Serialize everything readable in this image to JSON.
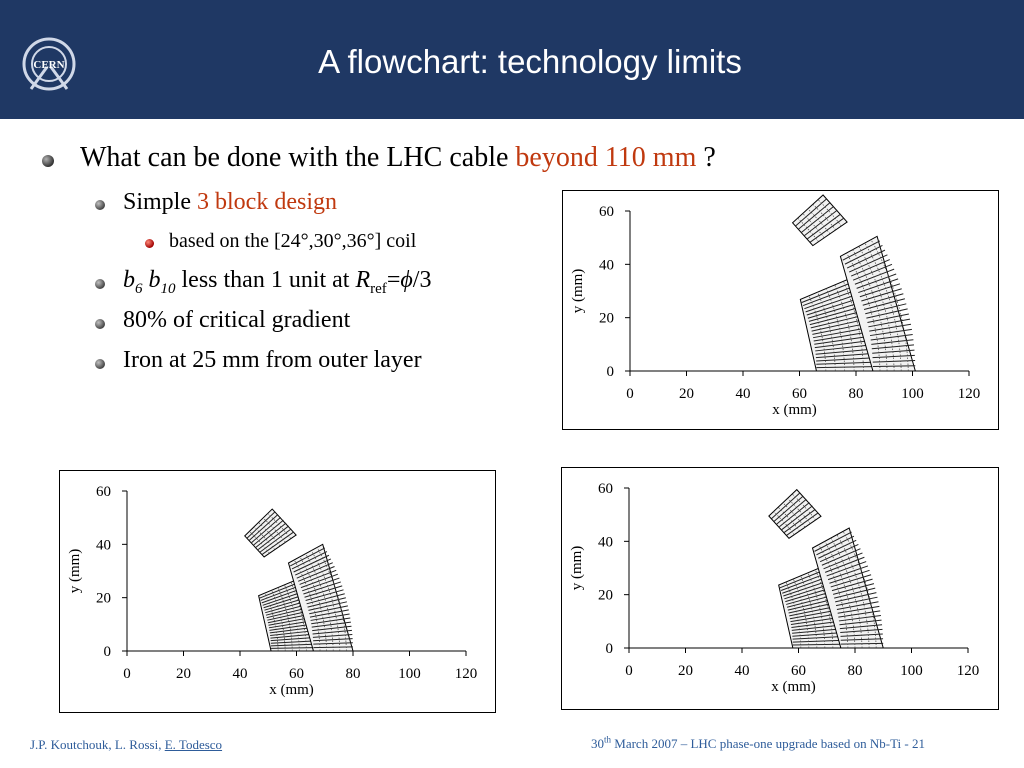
{
  "header": {
    "title": "A flowchart: technology limits",
    "logo_text": "CERN"
  },
  "bullets": {
    "l1_text": "What can be done with the LHC cable ",
    "l1_highlight": "beyond 110 mm",
    "l1_end": " ?",
    "l2a_text": "Simple ",
    "l2a_highlight": "3 block design",
    "l3_text": "based on the [24°,30°,36°] coil",
    "l2b_b": "b",
    "l2b_6": "6",
    "l2b_b2": "b",
    "l2b_10": "10",
    "l2b_mid": " less than 1 unit at ",
    "l2b_R": "R",
    "l2b_ref": "ref",
    "l2b_eq": "=",
    "l2b_phi": "ϕ",
    "l2b_div": "/3",
    "l2c": "80% of critical gradient",
    "l2d": "Iron at 25 mm from outer layer"
  },
  "footer": {
    "authors": "J.P. Koutchouk, L. Rossi, ",
    "author_underlined": "E. Todesco",
    "date_day": "30",
    "date_sup": "th",
    "date_rest": " March 2007 – LHC phase-one upgrade based on Nb-Ti  - 21"
  },
  "chart_data": [
    {
      "type": "scatter",
      "position": "top-right",
      "xlabel": "x (mm)",
      "ylabel": "y (mm)",
      "xlim": [
        0,
        120
      ],
      "ylim": [
        0,
        60
      ],
      "xticks": [
        "0",
        "20",
        "40",
        "60",
        "80",
        "100",
        "120"
      ],
      "yticks": [
        "0",
        "20",
        "40",
        "60"
      ],
      "blocks": [
        {
          "name": "inner",
          "r_in": 66,
          "r_out": 86,
          "a0": 0,
          "a1": 24
        },
        {
          "name": "outer",
          "r_in": 86,
          "r_out": 101,
          "a0": 0,
          "a1": 30
        },
        {
          "name": "pole",
          "r_in": 80,
          "r_out": 95,
          "a0": 36,
          "a1": 44
        }
      ]
    },
    {
      "type": "scatter",
      "position": "bottom-left",
      "xlabel": "x (mm)",
      "ylabel": "y (mm)",
      "xlim": [
        0,
        120
      ],
      "ylim": [
        0,
        60
      ],
      "xticks": [
        "0",
        "20",
        "40",
        "60",
        "80",
        "100",
        "120"
      ],
      "yticks": [
        "0",
        "20",
        "40",
        "60"
      ],
      "blocks": [
        {
          "name": "inner",
          "r_in": 51,
          "r_out": 66,
          "a0": 0,
          "a1": 24
        },
        {
          "name": "outer",
          "r_in": 66,
          "r_out": 80,
          "a0": 0,
          "a1": 30
        },
        {
          "name": "pole",
          "r_in": 60,
          "r_out": 74,
          "a0": 36,
          "a1": 46
        }
      ]
    },
    {
      "type": "scatter",
      "position": "bottom-right",
      "xlabel": "x (mm)",
      "ylabel": "y (mm)",
      "xlim": [
        0,
        120
      ],
      "ylim": [
        0,
        60
      ],
      "xticks": [
        "0",
        "20",
        "40",
        "60",
        "80",
        "100",
        "120"
      ],
      "yticks": [
        "0",
        "20",
        "40",
        "60"
      ],
      "blocks": [
        {
          "name": "inner",
          "r_in": 58,
          "r_out": 75,
          "a0": 0,
          "a1": 24
        },
        {
          "name": "outer",
          "r_in": 75,
          "r_out": 90,
          "a0": 0,
          "a1": 30
        },
        {
          "name": "pole",
          "r_in": 70,
          "r_out": 84,
          "a0": 36,
          "a1": 45
        }
      ]
    }
  ]
}
